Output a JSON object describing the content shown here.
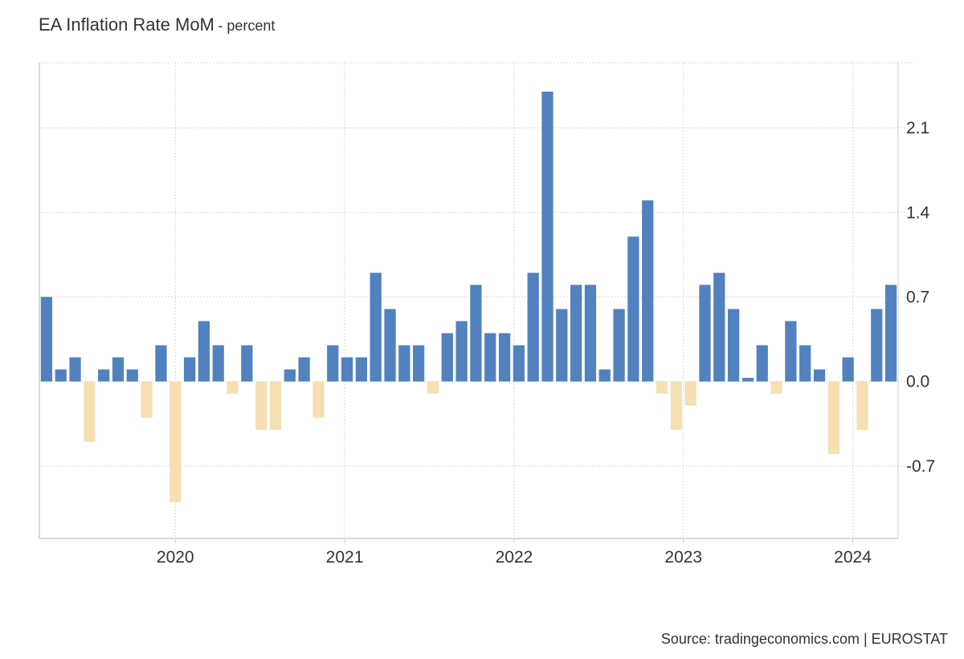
{
  "chart_data": {
    "type": "bar",
    "title": "EA Inflation Rate MoM",
    "subtitle": "- percent",
    "xlabel": "",
    "ylabel": "",
    "y_ticks": [
      -0.7,
      0.0,
      0.7,
      1.4,
      2.1
    ],
    "y_tick_labels": [
      "-0.7",
      "0.0",
      "0.7",
      "1.4",
      "2.1"
    ],
    "ylim": [
      -1.3,
      2.64
    ],
    "x_ticks": [
      {
        "label": "2020",
        "at": 9.5
      },
      {
        "label": "2021",
        "at": 21.33
      },
      {
        "label": "2022",
        "at": 33.17
      },
      {
        "label": "2023",
        "at": 45.0
      },
      {
        "label": "2024",
        "at": 56.83
      }
    ],
    "start_month": "2019-04",
    "categories": [
      "Apr 2019",
      "May 2019",
      "Jun 2019",
      "Jul 2019",
      "Aug 2019",
      "Sep 2019",
      "Oct 2019",
      "Nov 2019",
      "Dec 2019",
      "Jan 2020",
      "Feb 2020",
      "Mar 2020",
      "Apr 2020",
      "May 2020",
      "Jun 2020",
      "Jul 2020",
      "Aug 2020",
      "Sep 2020",
      "Oct 2020",
      "Nov 2020",
      "Dec 2020",
      "Jan 2021",
      "Feb 2021",
      "Mar 2021",
      "Apr 2021",
      "May 2021",
      "Jun 2021",
      "Jul 2021",
      "Aug 2021",
      "Sep 2021",
      "Oct 2021",
      "Nov 2021",
      "Dec 2021",
      "Jan 2022",
      "Feb 2022",
      "Mar 2022",
      "Apr 2022",
      "May 2022",
      "Jun 2022",
      "Jul 2022",
      "Aug 2022",
      "Sep 2022",
      "Oct 2022",
      "Nov 2022",
      "Dec 2022",
      "Jan 2023",
      "Feb 2023",
      "Mar 2023",
      "Apr 2023",
      "May 2023",
      "Jun 2023",
      "Jul 2023",
      "Aug 2023",
      "Sep 2023",
      "Oct 2023",
      "Nov 2023",
      "Dec 2023",
      "Jan 2024",
      "Feb 2024",
      "Mar 2024"
    ],
    "values": [
      0.7,
      0.1,
      0.2,
      -0.5,
      0.1,
      0.2,
      0.1,
      -0.3,
      0.3,
      -1.0,
      0.2,
      0.5,
      0.3,
      -0.1,
      0.3,
      -0.4,
      -0.4,
      0.1,
      0.2,
      -0.3,
      0.3,
      0.2,
      0.2,
      0.9,
      0.6,
      0.3,
      0.3,
      -0.1,
      0.4,
      0.5,
      0.8,
      0.4,
      0.4,
      0.3,
      0.9,
      2.4,
      0.6,
      0.8,
      0.8,
      0.1,
      0.6,
      1.2,
      1.5,
      -0.1,
      -0.4,
      -0.2,
      0.8,
      0.9,
      0.6,
      0.03,
      0.3,
      -0.1,
      0.5,
      0.3,
      0.1,
      -0.6,
      0.2,
      -0.4,
      0.6,
      0.8
    ],
    "colors": {
      "positive": "#5182bf",
      "negative": "#f5dfb3",
      "grid": "#d9d9d9",
      "axis": "#cccccc",
      "text": "#333333"
    },
    "grid": true
  },
  "source": "Source: tradingeconomics.com | EUROSTAT"
}
